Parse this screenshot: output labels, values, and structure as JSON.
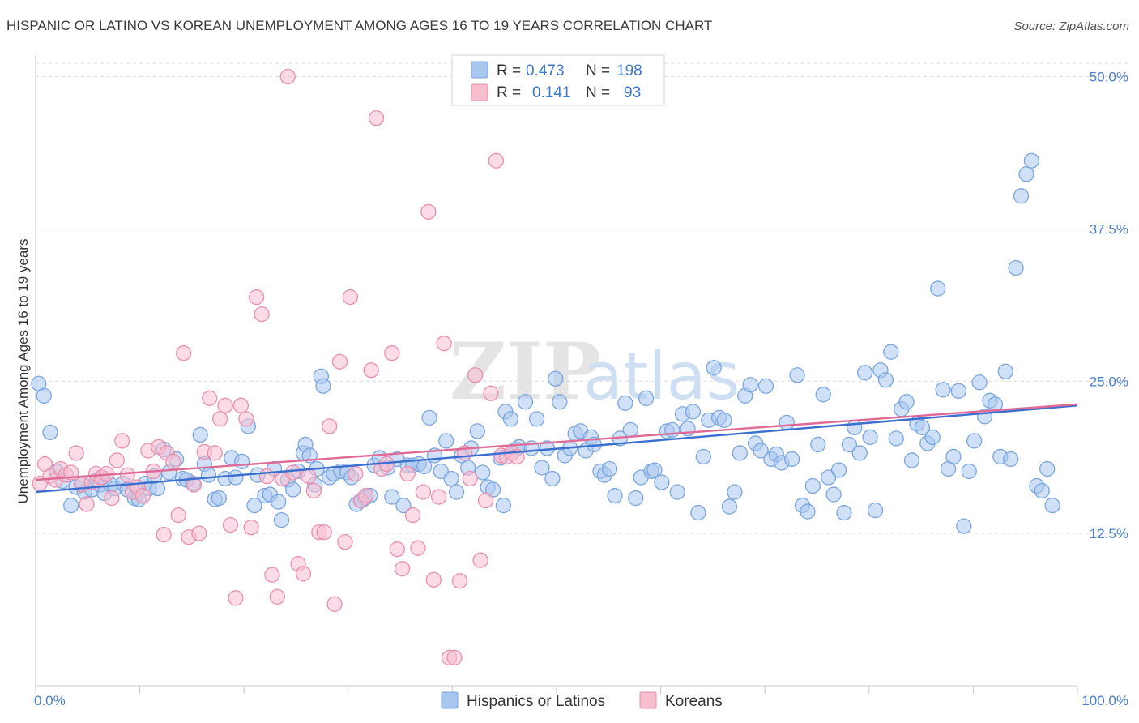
{
  "title": "HISPANIC OR LATINO VS KOREAN UNEMPLOYMENT AMONG AGES 16 TO 19 YEARS CORRELATION CHART",
  "source": "Source: ZipAtlas.com",
  "watermark": {
    "zip": "ZIP",
    "atlas": "atlas"
  },
  "legend": {
    "r_label": "R =",
    "n_label": "N =",
    "rows": [
      {
        "r": "0.473",
        "n": "198",
        "fill": "#a9c6ef",
        "stroke": "#7aa6e0"
      },
      {
        "r": "0.141",
        "n": "93",
        "fill": "#f7bed0",
        "stroke": "#e98fae"
      }
    ]
  },
  "bottom_legend": [
    "Hispanics or Latinos",
    "Koreans"
  ],
  "chart_data": {
    "type": "scatter",
    "title": "HISPANIC OR LATINO VS KOREAN UNEMPLOYMENT AMONG AGES 16 TO 19 YEARS CORRELATION CHART",
    "xlabel": "",
    "ylabel": "Unemployment Among Ages 16 to 19 years",
    "xlim": [
      0,
      100
    ],
    "ylim": [
      0,
      52
    ],
    "x_ticks": [
      "0.0%",
      "100.0%"
    ],
    "y_ticks": [
      {
        "value": 12.5,
        "label": "12.5%"
      },
      {
        "value": 25.0,
        "label": "25.0%"
      },
      {
        "value": 37.5,
        "label": "37.5%"
      },
      {
        "value": 50.0,
        "label": "50.0%"
      }
    ],
    "grid": true,
    "legend_position": "top-center",
    "series": [
      {
        "name": "Hispanics or Latinos",
        "color": "#7aa6e0",
        "fill": "#a9c6ef",
        "trend": {
          "x": [
            0,
            100
          ],
          "y": [
            15.9,
            23.0
          ],
          "color": "#3a6fd0"
        },
        "points": [
          [
            0.3,
            24.8
          ],
          [
            0.8,
            23.8
          ],
          [
            1.4,
            20.8
          ],
          [
            2.0,
            17.6
          ],
          [
            2.6,
            16.8
          ],
          [
            3.4,
            14.8
          ],
          [
            3.9,
            16.3
          ],
          [
            4.5,
            16.6
          ],
          [
            4.7,
            15.9
          ],
          [
            5.4,
            16.1
          ],
          [
            5.9,
            16.9
          ],
          [
            6.2,
            16.5
          ],
          [
            6.4,
            17.1
          ],
          [
            6.6,
            15.8
          ],
          [
            7.2,
            16.5
          ],
          [
            7.6,
            16.2
          ],
          [
            8.4,
            16.6
          ],
          [
            8.8,
            16.1
          ],
          [
            9.5,
            15.4
          ],
          [
            9.9,
            15.3
          ],
          [
            10.5,
            16.6
          ],
          [
            10.9,
            16.2
          ],
          [
            11.4,
            17.2
          ],
          [
            11.7,
            16.2
          ],
          [
            12.3,
            19.4
          ],
          [
            12.8,
            17.5
          ],
          [
            13.5,
            18.6
          ],
          [
            14.1,
            17.0
          ],
          [
            14.5,
            16.9
          ],
          [
            15.1,
            16.6
          ],
          [
            15.8,
            20.6
          ],
          [
            16.2,
            18.2
          ],
          [
            16.6,
            17.3
          ],
          [
            17.2,
            15.3
          ],
          [
            17.6,
            15.4
          ],
          [
            18.2,
            17.0
          ],
          [
            18.8,
            18.7
          ],
          [
            19.2,
            17.1
          ],
          [
            19.8,
            18.4
          ],
          [
            20.4,
            21.3
          ],
          [
            21.0,
            14.8
          ],
          [
            21.3,
            17.3
          ],
          [
            22.0,
            15.6
          ],
          [
            22.5,
            15.7
          ],
          [
            22.9,
            17.8
          ],
          [
            23.3,
            15.1
          ],
          [
            23.6,
            13.6
          ],
          [
            24.2,
            16.9
          ],
          [
            24.7,
            16.1
          ],
          [
            25.2,
            17.6
          ],
          [
            25.7,
            19.1
          ],
          [
            25.9,
            19.8
          ],
          [
            26.3,
            18.9
          ],
          [
            26.8,
            16.5
          ],
          [
            27.0,
            17.8
          ],
          [
            27.4,
            25.4
          ],
          [
            27.6,
            24.6
          ],
          [
            28.2,
            17.1
          ],
          [
            28.6,
            17.4
          ],
          [
            29.3,
            17.6
          ],
          [
            29.9,
            17.5
          ],
          [
            30.3,
            17.1
          ],
          [
            30.8,
            14.9
          ],
          [
            31.3,
            15.2
          ],
          [
            31.6,
            15.4
          ],
          [
            32.1,
            15.6
          ],
          [
            32.5,
            18.1
          ],
          [
            33.0,
            18.7
          ],
          [
            33.8,
            17.9
          ],
          [
            34.2,
            15.5
          ],
          [
            34.7,
            18.6
          ],
          [
            35.3,
            14.8
          ],
          [
            35.7,
            18.1
          ],
          [
            36.2,
            18.1
          ],
          [
            36.8,
            18.2
          ],
          [
            37.3,
            18.0
          ],
          [
            37.8,
            22.0
          ],
          [
            38.3,
            18.9
          ],
          [
            38.9,
            17.6
          ],
          [
            39.4,
            20.1
          ],
          [
            39.9,
            17.0
          ],
          [
            40.4,
            15.9
          ],
          [
            40.9,
            18.9
          ],
          [
            41.5,
            17.9
          ],
          [
            41.8,
            19.5
          ],
          [
            42.4,
            20.9
          ],
          [
            42.9,
            17.5
          ],
          [
            43.4,
            16.3
          ],
          [
            43.9,
            16.1
          ],
          [
            44.6,
            18.7
          ],
          [
            44.9,
            14.8
          ],
          [
            45.1,
            22.5
          ],
          [
            45.6,
            21.9
          ],
          [
            46.1,
            19.4
          ],
          [
            46.4,
            19.6
          ],
          [
            47.0,
            23.3
          ],
          [
            47.6,
            19.5
          ],
          [
            48.1,
            21.9
          ],
          [
            48.6,
            17.9
          ],
          [
            49.1,
            19.5
          ],
          [
            49.6,
            17.0
          ],
          [
            49.9,
            25.2
          ],
          [
            50.3,
            23.3
          ],
          [
            50.8,
            18.9
          ],
          [
            51.3,
            19.5
          ],
          [
            51.8,
            20.7
          ],
          [
            52.3,
            20.9
          ],
          [
            52.8,
            19.3
          ],
          [
            53.3,
            20.4
          ],
          [
            53.6,
            19.8
          ],
          [
            54.2,
            17.6
          ],
          [
            54.6,
            17.3
          ],
          [
            55.1,
            17.8
          ],
          [
            55.6,
            15.6
          ],
          [
            56.1,
            20.3
          ],
          [
            56.6,
            23.2
          ],
          [
            57.1,
            21.0
          ],
          [
            57.6,
            15.4
          ],
          [
            58.1,
            17.1
          ],
          [
            58.6,
            23.6
          ],
          [
            59.1,
            17.6
          ],
          [
            59.4,
            17.7
          ],
          [
            60.1,
            16.7
          ],
          [
            60.6,
            20.9
          ],
          [
            61.1,
            21.0
          ],
          [
            61.6,
            15.9
          ],
          [
            62.1,
            22.3
          ],
          [
            62.6,
            21.1
          ],
          [
            63.1,
            22.5
          ],
          [
            63.6,
            14.2
          ],
          [
            64.1,
            18.8
          ],
          [
            64.6,
            21.8
          ],
          [
            65.1,
            26.1
          ],
          [
            65.6,
            22.0
          ],
          [
            66.1,
            21.8
          ],
          [
            66.6,
            14.7
          ],
          [
            67.1,
            15.9
          ],
          [
            67.6,
            19.1
          ],
          [
            68.1,
            23.8
          ],
          [
            68.6,
            24.7
          ],
          [
            69.1,
            19.9
          ],
          [
            69.6,
            19.3
          ],
          [
            70.1,
            24.6
          ],
          [
            70.6,
            18.6
          ],
          [
            71.1,
            19.0
          ],
          [
            71.6,
            18.3
          ],
          [
            72.1,
            21.6
          ],
          [
            72.6,
            18.6
          ],
          [
            73.1,
            25.5
          ],
          [
            73.6,
            14.8
          ],
          [
            74.1,
            14.3
          ],
          [
            74.6,
            16.4
          ],
          [
            75.1,
            19.8
          ],
          [
            75.6,
            23.9
          ],
          [
            76.1,
            17.1
          ],
          [
            76.6,
            15.7
          ],
          [
            77.1,
            17.7
          ],
          [
            77.6,
            14.2
          ],
          [
            78.1,
            19.8
          ],
          [
            78.6,
            21.2
          ],
          [
            79.1,
            19.1
          ],
          [
            79.6,
            25.7
          ],
          [
            80.1,
            20.4
          ],
          [
            80.6,
            14.4
          ],
          [
            81.1,
            25.9
          ],
          [
            81.6,
            25.1
          ],
          [
            82.1,
            27.4
          ],
          [
            82.6,
            20.3
          ],
          [
            83.1,
            22.7
          ],
          [
            83.6,
            23.3
          ],
          [
            84.1,
            18.5
          ],
          [
            84.6,
            21.5
          ],
          [
            85.1,
            21.2
          ],
          [
            85.6,
            19.9
          ],
          [
            86.1,
            20.4
          ],
          [
            86.6,
            32.6
          ],
          [
            87.1,
            24.3
          ],
          [
            87.6,
            17.8
          ],
          [
            88.1,
            18.8
          ],
          [
            88.6,
            24.2
          ],
          [
            89.1,
            13.1
          ],
          [
            89.6,
            17.6
          ],
          [
            90.1,
            20.1
          ],
          [
            90.6,
            24.9
          ],
          [
            91.1,
            22.1
          ],
          [
            91.6,
            23.4
          ],
          [
            92.1,
            23.1
          ],
          [
            92.6,
            18.8
          ],
          [
            93.1,
            25.8
          ],
          [
            93.6,
            18.6
          ],
          [
            94.1,
            34.3
          ],
          [
            94.6,
            40.2
          ],
          [
            95.1,
            42.0
          ],
          [
            95.6,
            43.1
          ],
          [
            96.1,
            16.4
          ],
          [
            96.6,
            16.0
          ],
          [
            97.1,
            17.8
          ],
          [
            97.6,
            14.8
          ]
        ]
      },
      {
        "name": "Koreans",
        "color": "#e98fae",
        "fill": "#f7bed0",
        "trend": {
          "x": [
            0,
            100
          ],
          "y": [
            16.9,
            23.1
          ],
          "color": "#e06a96"
        },
        "points": [
          [
            0.4,
            16.6
          ],
          [
            0.9,
            18.2
          ],
          [
            1.4,
            17.2
          ],
          [
            1.9,
            16.9
          ],
          [
            2.4,
            17.8
          ],
          [
            2.9,
            17.3
          ],
          [
            3.4,
            17.5
          ],
          [
            3.9,
            19.1
          ],
          [
            4.4,
            16.5
          ],
          [
            4.9,
            14.9
          ],
          [
            5.4,
            16.7
          ],
          [
            5.8,
            17.4
          ],
          [
            6.3,
            17.1
          ],
          [
            6.8,
            17.4
          ],
          [
            7.3,
            15.4
          ],
          [
            7.8,
            18.5
          ],
          [
            8.3,
            20.1
          ],
          [
            8.8,
            17.3
          ],
          [
            9.3,
            15.9
          ],
          [
            9.8,
            16.3
          ],
          [
            10.3,
            15.6
          ],
          [
            10.8,
            19.3
          ],
          [
            11.3,
            17.6
          ],
          [
            11.8,
            19.6
          ],
          [
            12.3,
            12.4
          ],
          [
            12.6,
            19.1
          ],
          [
            13.2,
            18.4
          ],
          [
            13.7,
            14.0
          ],
          [
            14.2,
            27.3
          ],
          [
            14.7,
            12.2
          ],
          [
            15.2,
            16.5
          ],
          [
            15.7,
            12.5
          ],
          [
            16.2,
            19.2
          ],
          [
            16.7,
            23.6
          ],
          [
            17.2,
            19.1
          ],
          [
            17.7,
            21.9
          ],
          [
            18.2,
            23.0
          ],
          [
            18.7,
            13.2
          ],
          [
            19.2,
            7.2
          ],
          [
            19.7,
            23.0
          ],
          [
            20.2,
            21.9
          ],
          [
            20.7,
            13.0
          ],
          [
            21.2,
            31.9
          ],
          [
            21.7,
            30.5
          ],
          [
            22.2,
            17.2
          ],
          [
            22.7,
            9.1
          ],
          [
            23.2,
            7.3
          ],
          [
            23.7,
            17.0
          ],
          [
            24.2,
            50.0
          ],
          [
            24.7,
            17.5
          ],
          [
            25.2,
            10.0
          ],
          [
            25.7,
            9.2
          ],
          [
            26.2,
            17.2
          ],
          [
            26.7,
            16.0
          ],
          [
            27.2,
            12.6
          ],
          [
            27.7,
            12.6
          ],
          [
            28.2,
            21.3
          ],
          [
            28.7,
            6.7
          ],
          [
            29.2,
            26.6
          ],
          [
            29.7,
            11.8
          ],
          [
            30.2,
            31.9
          ],
          [
            30.7,
            17.4
          ],
          [
            31.2,
            15.2
          ],
          [
            31.7,
            15.6
          ],
          [
            32.2,
            25.9
          ],
          [
            32.7,
            46.6
          ],
          [
            33.2,
            17.8
          ],
          [
            33.7,
            18.2
          ],
          [
            34.2,
            27.3
          ],
          [
            34.7,
            11.2
          ],
          [
            35.2,
            9.6
          ],
          [
            35.7,
            17.4
          ],
          [
            36.2,
            14.0
          ],
          [
            36.7,
            11.3
          ],
          [
            37.2,
            15.9
          ],
          [
            37.7,
            38.9
          ],
          [
            38.2,
            8.7
          ],
          [
            38.7,
            15.5
          ],
          [
            39.2,
            28.1
          ],
          [
            39.7,
            2.3
          ],
          [
            40.2,
            2.3
          ],
          [
            40.7,
            8.6
          ],
          [
            41.2,
            19.1
          ],
          [
            41.7,
            17.0
          ],
          [
            42.2,
            25.5
          ],
          [
            42.7,
            10.3
          ],
          [
            43.2,
            15.2
          ],
          [
            43.7,
            24.0
          ],
          [
            44.2,
            43.1
          ],
          [
            44.7,
            18.9
          ],
          [
            45.2,
            18.8
          ],
          [
            45.7,
            19.1
          ],
          [
            46.2,
            18.8
          ]
        ]
      }
    ]
  }
}
